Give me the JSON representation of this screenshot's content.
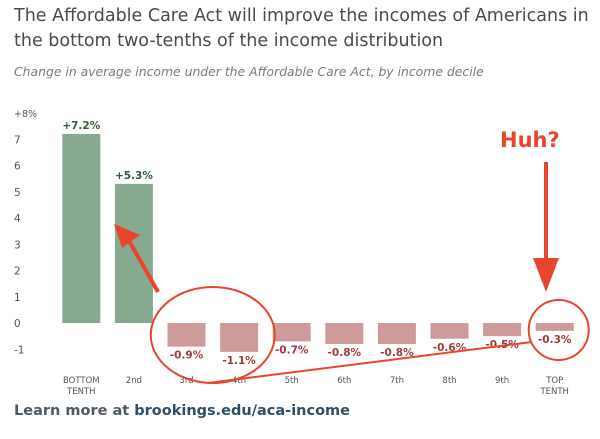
{
  "header": {
    "title": "The Affordable Care Act will improve the incomes of Americans in the bottom two-tenths of the income distribution",
    "subtitle": "Change in average income under the Affordable Care Act, by income decile"
  },
  "footer": {
    "prefix": "Learn more at",
    "url": "brookings.edu/aca-income"
  },
  "annotation": {
    "text": "Huh?",
    "color": "#e8462c"
  },
  "colors": {
    "positive_bar": "#86a98f",
    "negative_bar": "#cf9a9a",
    "positive_label": "#2e5a3a",
    "negative_label": "#a33a3a",
    "axis_text": "#555555"
  },
  "chart_data": {
    "type": "bar",
    "title": "",
    "xlabel": "",
    "ylabel": "",
    "ylim": [
      -1.5,
      8
    ],
    "yticks": [
      {
        "value": 8,
        "label": "+8%"
      },
      {
        "value": 7,
        "label": "7"
      },
      {
        "value": 6,
        "label": "6"
      },
      {
        "value": 5,
        "label": "5"
      },
      {
        "value": 4,
        "label": "4"
      },
      {
        "value": 3,
        "label": "3"
      },
      {
        "value": 2,
        "label": "2"
      },
      {
        "value": 1,
        "label": "1"
      },
      {
        "value": 0,
        "label": "0"
      },
      {
        "value": -1,
        "label": "-1"
      }
    ],
    "categories": [
      [
        "BOTTOM",
        "TENTH"
      ],
      [
        "2nd"
      ],
      [
        "3rd"
      ],
      [
        "4th"
      ],
      [
        "5th"
      ],
      [
        "6th"
      ],
      [
        "7th"
      ],
      [
        "8th"
      ],
      [
        "9th"
      ],
      [
        "TOP",
        "TENTH"
      ]
    ],
    "values": [
      7.2,
      5.3,
      -0.9,
      -1.1,
      -0.7,
      -0.8,
      -0.8,
      -0.6,
      -0.5,
      -0.3
    ],
    "data_labels": [
      "+7.2%",
      "+5.3%",
      "-0.9%",
      "-1.1%",
      "-0.7%",
      "-0.8%",
      "-0.8%",
      "-0.6%",
      "-0.5%",
      "-0.3%"
    ],
    "grid": false
  }
}
